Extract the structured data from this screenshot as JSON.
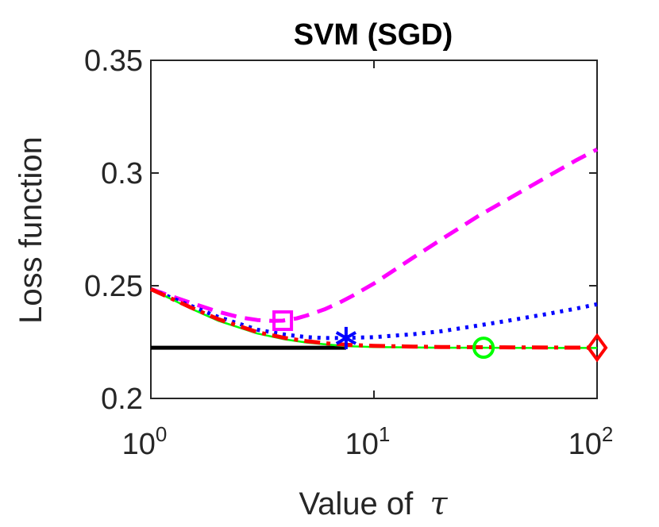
{
  "chart_data": {
    "type": "line",
    "title": "SVM (SGD)",
    "xlabel": "Value of",
    "xlabel_symbol": "τ",
    "ylabel": "Loss function",
    "xscale": "log",
    "xlim": [
      1,
      100
    ],
    "ylim": [
      0.2,
      0.35
    ],
    "x_ticks": [
      {
        "value": 1,
        "base": "10",
        "exp": "0"
      },
      {
        "value": 10,
        "base": "10",
        "exp": "1"
      },
      {
        "value": 100,
        "base": "10",
        "exp": "2"
      }
    ],
    "y_ticks": [
      {
        "value": 0.2,
        "label": "0.2"
      },
      {
        "value": 0.25,
        "label": "0.25"
      },
      {
        "value": 0.3,
        "label": "0.3"
      },
      {
        "value": 0.35,
        "label": "0.35"
      }
    ],
    "series": [
      {
        "name": "baseline",
        "color": "#000000",
        "style": "solid",
        "x": [
          1,
          7.5
        ],
        "y": [
          0.2225,
          0.2225
        ]
      },
      {
        "name": "magenta-dashed",
        "color": "#ff00ff",
        "style": "dashed",
        "marker": "square",
        "marker_x": 3.9,
        "marker_y": 0.2345,
        "x": [
          1,
          1.5,
          2,
          2.5,
          3,
          3.5,
          3.9,
          4.5,
          5,
          6,
          7,
          8,
          10,
          15,
          20,
          30,
          40,
          60,
          80,
          100
        ],
        "y": [
          0.2485,
          0.2425,
          0.2385,
          0.236,
          0.2348,
          0.2344,
          0.2345,
          0.2355,
          0.2368,
          0.2395,
          0.2425,
          0.2455,
          0.251,
          0.2625,
          0.2705,
          0.2815,
          0.2885,
          0.2985,
          0.3055,
          0.3105
        ]
      },
      {
        "name": "blue-dotted",
        "color": "#0000ff",
        "style": "dotted",
        "marker": "asterisk",
        "marker_x": 7.5,
        "marker_y": 0.2268,
        "x": [
          1,
          1.5,
          2,
          3,
          4,
          5,
          6,
          7.5,
          10,
          15,
          20,
          30,
          40,
          60,
          80,
          100
        ],
        "y": [
          0.2485,
          0.2412,
          0.2362,
          0.2305,
          0.2283,
          0.2272,
          0.2268,
          0.2268,
          0.2272,
          0.2285,
          0.2298,
          0.2325,
          0.2345,
          0.2375,
          0.2398,
          0.2418
        ]
      },
      {
        "name": "green-solid",
        "color": "#00ff00",
        "style": "solid",
        "marker": "circle",
        "marker_x": 31,
        "marker_y": 0.2225,
        "x": [
          1,
          1.5,
          2,
          3,
          4,
          5,
          6,
          7.5,
          10,
          15,
          20,
          31,
          50,
          100
        ],
        "y": [
          0.2485,
          0.24,
          0.2345,
          0.2288,
          0.2262,
          0.2248,
          0.224,
          0.2232,
          0.2228,
          0.2226,
          0.2225,
          0.2225,
          0.2224,
          0.2224
        ]
      },
      {
        "name": "red-dashdot",
        "color": "#ff0000",
        "style": "dashdot",
        "marker": "diamond",
        "marker_x": 100,
        "marker_y": 0.2225,
        "x": [
          1,
          1.5,
          2,
          3,
          4,
          5,
          6,
          7.5,
          10,
          15,
          20,
          31,
          50,
          100
        ],
        "y": [
          0.2485,
          0.2405,
          0.2352,
          0.2294,
          0.2268,
          0.2254,
          0.2245,
          0.2238,
          0.2233,
          0.223,
          0.2228,
          0.2227,
          0.2226,
          0.2225
        ]
      }
    ]
  }
}
